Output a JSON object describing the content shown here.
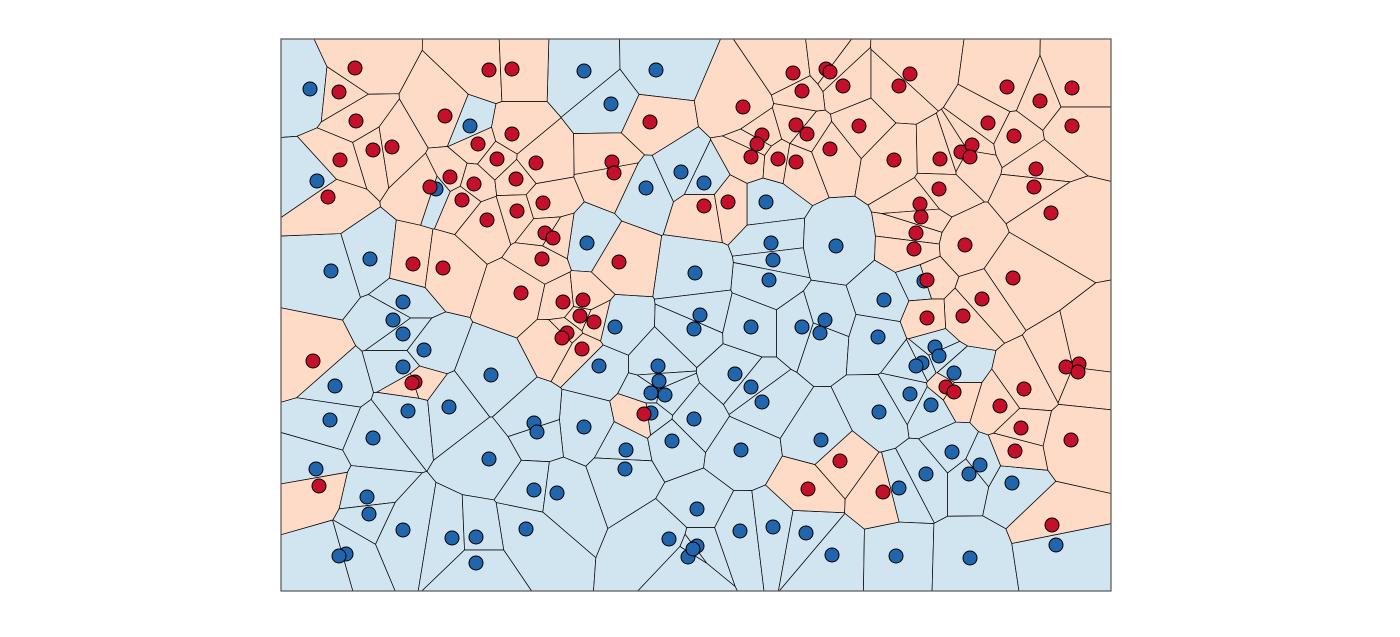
{
  "chart_data": {
    "type": "voronoi",
    "xlim": [
      281,
      1111
    ],
    "ylim": [
      591,
      39
    ],
    "series": [
      {
        "color": "#2166ac",
        "cell_color": "#d1e5f0",
        "x": [
          310,
          584,
          656,
          611,
          470,
          317,
          436,
          646,
          681,
          704,
          766,
          587,
          771,
          836,
          773,
          769,
          695,
          331,
          370,
          403,
          393,
          403,
          424,
          403,
          335,
          330,
          408,
          449,
          373,
          491,
          615,
          700,
          694,
          751,
          802,
          825,
          820,
          884,
          878,
          924,
          935,
          939,
          922,
          916,
          954,
          910,
          931,
          599,
          658,
          659,
          651,
          665,
          735,
          751,
          762,
          879,
          651,
          694,
          584,
          534,
          537,
          626,
          672,
          741,
          821,
          952,
          980,
          969,
          926,
          899,
          1012,
          489,
          625,
          316,
          367,
          369,
          403,
          534,
          557,
          697,
          526,
          452,
          476,
          476,
          346,
          339,
          669,
          688,
          697,
          693,
          740,
          773,
          806,
          832,
          896,
          970,
          1056
        ],
        "y": [
          89,
          71,
          70,
          104,
          126,
          181,
          189,
          188,
          172,
          183,
          202,
          243,
          243,
          246,
          260,
          280,
          273,
          271,
          259,
          302,
          320,
          334,
          350,
          367,
          386,
          420,
          411,
          407,
          438,
          375,
          327,
          315,
          329,
          327,
          327,
          320,
          333,
          300,
          337,
          281,
          347,
          356,
          363,
          366,
          373,
          394,
          405,
          366,
          366,
          381,
          393,
          395,
          374,
          387,
          402,
          412,
          413,
          419,
          427,
          423,
          432,
          450,
          441,
          450,
          440,
          452,
          465,
          474,
          474,
          488,
          483,
          459,
          469,
          469,
          497,
          514,
          530,
          490,
          493,
          509,
          529,
          538,
          537,
          563,
          554,
          556,
          539,
          557,
          546,
          549,
          531,
          527,
          533,
          555,
          556,
          558,
          545
        ]
      },
      {
        "color": "#c5102b",
        "cell_color": "#fddbc7",
        "x": [
          355,
          339,
          356,
          340,
          373,
          392,
          328,
          445,
          489,
          512,
          512,
          478,
          497,
          536,
          450,
          474,
          516,
          430,
          462,
          487,
          517,
          543,
          545,
          553,
          542,
          413,
          443,
          521,
          563,
          583,
          594,
          580,
          567,
          562,
          582,
          313,
          415,
          412,
          612,
          614,
          650,
          704,
          728,
          743,
          793,
          826,
          830,
          843,
          802,
          762,
          757,
          751,
          796,
          807,
          778,
          796,
          830,
          859,
          899,
          910,
          894,
          940,
          961,
          972,
          970,
          988,
          1014,
          1007,
          1040,
          1072,
          1072,
          1036,
          1034,
          1051,
          939,
          920,
          921,
          916,
          914,
          965,
          1013,
          927,
          982,
          963,
          927,
          619,
          644,
          946,
          954,
          1024,
          1079,
          1066,
          1078,
          1000,
          1021,
          1015,
          1071,
          840,
          808,
          883,
          319,
          1052
        ],
        "y": [
          68,
          92,
          121,
          160,
          150,
          147,
          197,
          116,
          70,
          69,
          134,
          144,
          159,
          163,
          177,
          184,
          179,
          187,
          200,
          220,
          211,
          203,
          233,
          238,
          259,
          264,
          268,
          293,
          302,
          300,
          322,
          316,
          333,
          338,
          349,
          361,
          382,
          383,
          162,
          173,
          122,
          206,
          202,
          107,
          73,
          69,
          72,
          86,
          91,
          135,
          144,
          157,
          125,
          134,
          159,
          162,
          149,
          126,
          86,
          74,
          160,
          159,
          152,
          145,
          157,
          123,
          136,
          87,
          101,
          88,
          126,
          169,
          187,
          213,
          189,
          204,
          217,
          233,
          249,
          245,
          278,
          280,
          299,
          316,
          318,
          262,
          414,
          387,
          392,
          389,
          364,
          367,
          372,
          406,
          428,
          451,
          440,
          461,
          489,
          492,
          486,
          525
        ]
      }
    ]
  }
}
